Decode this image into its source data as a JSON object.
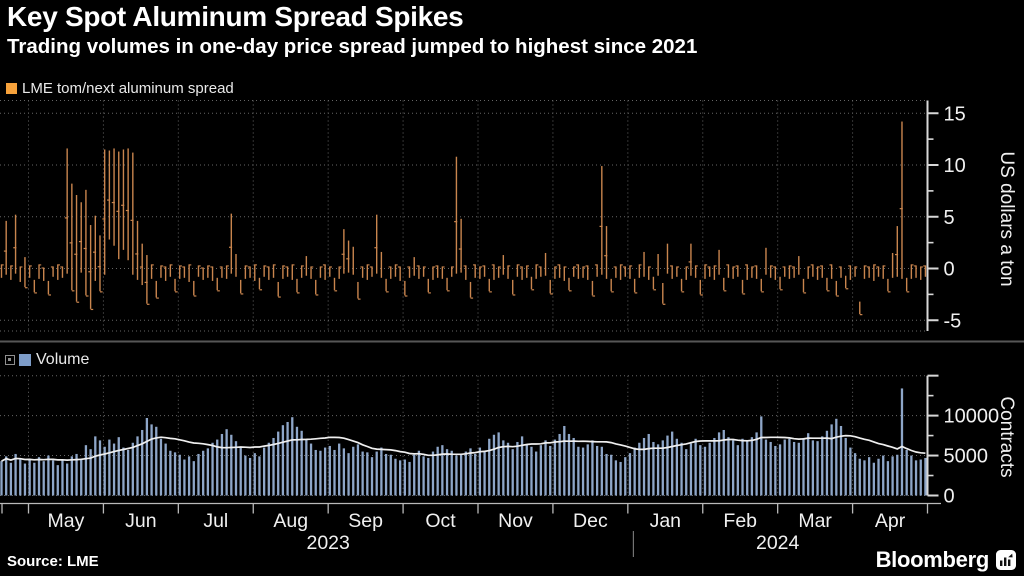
{
  "header": {
    "title": "Key Spot Aluminum Spread Spikes",
    "subtitle": "Trading volumes in one-day price spread jumped to highest since 2021"
  },
  "footer": {
    "source": "Source: LME",
    "brand": "Bloomberg"
  },
  "colors": {
    "background": "#000000",
    "text": "#f0f0f0",
    "grid": "#666666",
    "axis": "#d8d8d8",
    "separator": "#565656",
    "spread": "#c9854e",
    "spread_legend": "#f7a23b",
    "volume": "#8ea6c8",
    "volume_legend": "#7d9cc8",
    "ma_line": "#efefef"
  },
  "xaxis": {
    "months": [
      "May",
      "Jun",
      "Jul",
      "Aug",
      "Sep",
      "Oct",
      "Nov",
      "Dec",
      "Jan",
      "Feb",
      "Mar",
      "Apr"
    ],
    "years": [
      "2023",
      "2024"
    ],
    "year_spans_months": [
      8,
      4
    ]
  },
  "chart_data": [
    {
      "type": "bar",
      "subtype": "daily high-low range bars",
      "title": "LME tom/next aluminum spread",
      "ylabel": "US dollars a ton",
      "ylim": [
        -6,
        16.2
      ],
      "yticks": [
        15,
        10,
        5,
        0,
        -5
      ],
      "yticks_minor": [
        12.5,
        7.5,
        2.5,
        -2.5
      ],
      "grid": true,
      "legend_position": "top-left",
      "points_hi_lo": [
        [
          0.4,
          -0.9
        ],
        [
          4.6,
          -0.6
        ],
        [
          0.3,
          -1.1
        ],
        [
          5.2,
          -0.5
        ],
        [
          0.2,
          -1.3
        ],
        [
          1.1,
          -1.8
        ],
        [
          0.3,
          -0.9
        ],
        [
          -1.1,
          -2.3
        ],
        [
          0.4,
          -1
        ],
        [
          0.1,
          -1.2
        ],
        [
          -1.2,
          -2.5
        ],
        [
          0.2,
          -0.8
        ],
        [
          0.4,
          -1.1
        ],
        [
          0.2,
          -0.9
        ],
        [
          11.6,
          -0.5
        ],
        [
          8.2,
          -2.1
        ],
        [
          7.1,
          -3.2
        ],
        [
          6.4,
          -0.4
        ],
        [
          7.6,
          -2.6
        ],
        [
          4.2,
          -3.9
        ],
        [
          5.1,
          -1.2
        ],
        [
          3.2,
          -2.2
        ],
        [
          11.5,
          -0.6
        ],
        [
          11.4,
          2.8
        ],
        [
          11.6,
          2.2
        ],
        [
          11.3,
          0.9
        ],
        [
          11.5,
          1.8
        ],
        [
          11.6,
          0.8
        ],
        [
          11.2,
          -0.6
        ],
        [
          4.6,
          -1.1
        ],
        [
          2.4,
          -1.6
        ],
        [
          1.3,
          -3.4
        ],
        [
          0.4,
          -1
        ],
        [
          -1.2,
          -2.8
        ],
        [
          0.3,
          -0.9
        ],
        [
          0.2,
          -1.2
        ],
        [
          0.4,
          -0.8
        ],
        [
          -1,
          -2.2
        ],
        [
          0.3,
          -1
        ],
        [
          0.2,
          -0.9
        ],
        [
          0.4,
          -1.3
        ],
        [
          -1.2,
          -2.6
        ],
        [
          0.3,
          -0.8
        ],
        [
          0.1,
          -1.1
        ],
        [
          0.3,
          -0.9
        ],
        [
          0.2,
          -1.2
        ],
        [
          -0.9,
          -2.1
        ],
        [
          0.2,
          -0.9
        ],
        [
          0.3,
          -1
        ],
        [
          5.3,
          -0.5
        ],
        [
          1.4,
          -0.8
        ],
        [
          -1.1,
          -2.4
        ],
        [
          0.3,
          -1
        ],
        [
          0.2,
          -0.9
        ],
        [
          0.4,
          -1.2
        ],
        [
          -0.9,
          -2
        ],
        [
          0.3,
          -0.8
        ],
        [
          0.2,
          -1.1
        ],
        [
          0.4,
          -0.9
        ],
        [
          -1.3,
          -2.7
        ],
        [
          0.3,
          -1
        ],
        [
          0.2,
          -0.8
        ],
        [
          0.4,
          -1.1
        ],
        [
          -1,
          -2.3
        ],
        [
          0.3,
          -0.9
        ],
        [
          1.2,
          -0.7
        ],
        [
          0.2,
          -1
        ],
        [
          -1.1,
          -2.5
        ],
        [
          0.2,
          -0.9
        ],
        [
          0.4,
          -1.1
        ],
        [
          0.2,
          -0.8
        ],
        [
          -0.9,
          -2.1
        ],
        [
          0.2,
          -1
        ],
        [
          3.8,
          -0.5
        ],
        [
          2.7,
          -0.4
        ],
        [
          2.1,
          -0.6
        ],
        [
          -1.3,
          -2.9
        ],
        [
          0.2,
          -0.9
        ],
        [
          0.4,
          -1.1
        ],
        [
          0.2,
          -0.8
        ],
        [
          5.2,
          -0.5
        ],
        [
          1.6,
          -0.9
        ],
        [
          -1,
          -2.2
        ],
        [
          0.2,
          -1
        ],
        [
          0.4,
          -0.8
        ],
        [
          0.2,
          -1.2
        ],
        [
          -1.2,
          -2.6
        ],
        [
          0.2,
          -0.9
        ],
        [
          1.1,
          -0.7
        ],
        [
          0.3,
          -1
        ],
        [
          0.2,
          -0.8
        ],
        [
          -1,
          -2.3
        ],
        [
          0.2,
          -1.1
        ],
        [
          0.3,
          -0.9
        ],
        [
          0.2,
          -1
        ],
        [
          -0.9,
          -2.1
        ],
        [
          0.2,
          -0.8
        ],
        [
          10.8,
          -0.5
        ],
        [
          4.8,
          -0.4
        ],
        [
          0.3,
          -1.1
        ],
        [
          -1.3,
          -2.8
        ],
        [
          0.4,
          -0.9
        ],
        [
          0.2,
          -1
        ],
        [
          0.3,
          -0.8
        ],
        [
          -1,
          -2.2
        ],
        [
          0.4,
          -1.1
        ],
        [
          0.2,
          -0.9
        ],
        [
          1.3,
          -0.6
        ],
        [
          0.3,
          -1
        ],
        [
          -1.1,
          -2.5
        ],
        [
          0.4,
          -0.8
        ],
        [
          0.2,
          -1.1
        ],
        [
          0.3,
          -0.9
        ],
        [
          -0.8,
          -2
        ],
        [
          0.4,
          -1
        ],
        [
          0.2,
          -0.8
        ],
        [
          1.5,
          -0.7
        ],
        [
          -1.1,
          -2.4
        ],
        [
          0.2,
          -1
        ],
        [
          0.4,
          -0.9
        ],
        [
          0.2,
          -1.2
        ],
        [
          -0.9,
          -2.1
        ],
        [
          0.2,
          -0.8
        ],
        [
          0.4,
          -1
        ],
        [
          0.2,
          -0.9
        ],
        [
          0.3,
          -1.1
        ],
        [
          -1.2,
          -2.6
        ],
        [
          0.4,
          -0.8
        ],
        [
          9.9,
          -0.6
        ],
        [
          4.1,
          -1
        ],
        [
          -1,
          -2.2
        ],
        [
          0.2,
          -0.9
        ],
        [
          0.4,
          -1.1
        ],
        [
          0.2,
          -0.8
        ],
        [
          0.3,
          -1
        ],
        [
          -1,
          -2.3
        ],
        [
          0.4,
          -0.9
        ],
        [
          1.6,
          -0.8
        ],
        [
          0.2,
          -1.1
        ],
        [
          -0.8,
          -2
        ],
        [
          1.4,
          -0.7
        ],
        [
          -1.4,
          -3.4
        ],
        [
          2.4,
          -0.5
        ],
        [
          0.3,
          -1
        ],
        [
          0.2,
          -0.8
        ],
        [
          -1,
          -2.2
        ],
        [
          0.2,
          -1.1
        ],
        [
          2.4,
          -0.7
        ],
        [
          0.3,
          -0.9
        ],
        [
          -1.1,
          -2.5
        ],
        [
          0.4,
          -1
        ],
        [
          0.2,
          -0.8
        ],
        [
          0.3,
          -1.1
        ],
        [
          1.8,
          -0.6
        ],
        [
          -0.9,
          -2.1
        ],
        [
          0.4,
          -0.9
        ],
        [
          0.2,
          -1
        ],
        [
          0.3,
          -0.8
        ],
        [
          -1.1,
          -2.4
        ],
        [
          0.4,
          -1.1
        ],
        [
          0.2,
          -0.9
        ],
        [
          0.3,
          -1
        ],
        [
          -1,
          -2.2
        ],
        [
          2,
          -0.6
        ],
        [
          0.3,
          -0.9
        ],
        [
          0.2,
          -1.1
        ],
        [
          -0.8,
          -2
        ],
        [
          0.2,
          -0.8
        ],
        [
          0.3,
          -1
        ],
        [
          0.2,
          -0.9
        ],
        [
          1.2,
          -0.6
        ],
        [
          -1,
          -2.3
        ],
        [
          0.2,
          -1
        ],
        [
          0.4,
          -0.8
        ],
        [
          0.2,
          -1.1
        ],
        [
          0.3,
          -0.9
        ],
        [
          -0.9,
          -2.1
        ],
        [
          0.4,
          -1
        ],
        [
          -1.2,
          -2.6
        ],
        [
          0.2,
          -0.9
        ],
        [
          -0.7,
          -1.9
        ],
        [
          0.3,
          -1.1
        ],
        [
          0.2,
          -0.8
        ],
        [
          -3.2,
          -4.4
        ],
        [
          0.3,
          -1
        ],
        [
          0.2,
          -0.9
        ],
        [
          0.4,
          -1.2
        ],
        [
          0.2,
          -0.8
        ],
        [
          0.3,
          -1
        ],
        [
          -1,
          -2.2
        ],
        [
          1.5,
          -0.9
        ],
        [
          4.1,
          -0.8
        ],
        [
          14.2,
          -1
        ],
        [
          -0.9,
          -2.2
        ],
        [
          0.4,
          -1
        ],
        [
          0.3,
          -0.9
        ],
        [
          0.2,
          -1.1
        ],
        [
          0.3,
          -0.8
        ]
      ]
    },
    {
      "type": "bar",
      "subtype": "daily volume bars with moving-average overlay line",
      "title": "Volume",
      "ylabel": "Contracts",
      "ylim": [
        0,
        15000
      ],
      "yticks": [
        10000,
        5000,
        0
      ],
      "yticks_minor": [
        12500,
        7500,
        2500
      ],
      "unlabeled_tick": 15000,
      "grid": true,
      "legend_position": "top-left",
      "overlay_line": "moving average of volume",
      "values": [
        4300,
        4900,
        4100,
        5200,
        4500,
        4000,
        4600,
        4100,
        4800,
        4300,
        5000,
        4400,
        3800,
        4500,
        4000,
        4900,
        5200,
        4600,
        6300,
        5800,
        7400,
        6900,
        6100,
        7000,
        6500,
        7300,
        6000,
        5700,
        6600,
        7400,
        8200,
        9700,
        8900,
        8600,
        7100,
        6500,
        5600,
        5400,
        5100,
        4500,
        4900,
        4300,
        5200,
        5600,
        5900,
        6600,
        7000,
        7700,
        8300,
        7600,
        6800,
        6100,
        5000,
        4700,
        5300,
        4900,
        6000,
        6600,
        7200,
        8000,
        8800,
        9200,
        9800,
        8600,
        8100,
        7000,
        6500,
        5700,
        5600,
        6000,
        6200,
        5700,
        6500,
        5900,
        5300,
        6100,
        6400,
        5500,
        5400,
        4800,
        5500,
        6000,
        5200,
        5100,
        4600,
        4400,
        4500,
        4200,
        5100,
        5600,
        4900,
        4700,
        5500,
        6100,
        6300,
        5800,
        5600,
        5000,
        5100,
        5500,
        5900,
        5200,
        6000,
        5600,
        7100,
        7600,
        7900,
        6900,
        6600,
        5800,
        6700,
        7400,
        6400,
        6100,
        5500,
        6300,
        6900,
        6200,
        7000,
        7700,
        8700,
        7700,
        7200,
        6100,
        6000,
        6400,
        6900,
        6200,
        6100,
        5200,
        5100,
        4400,
        4200,
        4800,
        5300,
        6000,
        6600,
        7200,
        7700,
        6700,
        6400,
        6900,
        7500,
        8000,
        7100,
        6600,
        5800,
        6500,
        7100,
        6300,
        6100,
        6600,
        7200,
        7900,
        8200,
        7300,
        6900,
        6300,
        7100,
        6800,
        7300,
        7900,
        9900,
        7000,
        6700,
        6200,
        6400,
        7000,
        7100,
        6700,
        6600,
        7200,
        7800,
        6900,
        6800,
        7400,
        8100,
        8900,
        9600,
        8700,
        7200,
        6000,
        5300,
        4600,
        4400,
        4800,
        4100,
        4600,
        5000,
        4300,
        4900,
        5100,
        13400,
        5700,
        5000,
        4400,
        4500,
        4700
      ]
    }
  ]
}
